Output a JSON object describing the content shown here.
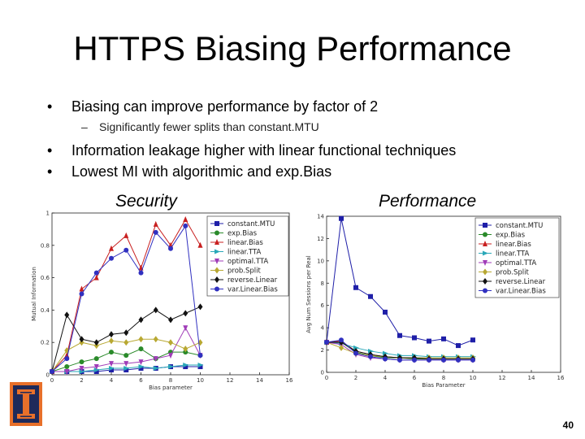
{
  "slide": {
    "title": "HTTPS Biasing Performance",
    "bullets": [
      "Biasing can improve performance by factor of 2",
      "Significantly fewer splits than constant.MTU",
      "Information leakage higher with linear functional techniques",
      "Lowest MI with algorithmic and exp.Bias"
    ],
    "label_security": "Security",
    "label_performance": "Performance",
    "page_number": "40"
  },
  "chart_data": [
    {
      "type": "line",
      "xlabel": "Bias parameter",
      "ylabel": "Mutual Information",
      "xlim": [
        0,
        16
      ],
      "ylim": [
        0,
        1.0
      ],
      "xticks": [
        0,
        2,
        4,
        6,
        8,
        10,
        12,
        14,
        16
      ],
      "yticks": [
        0,
        0.2,
        0.4,
        0.6,
        0.8,
        1.0
      ],
      "grid": false,
      "legend": "right, overlapping plot",
      "series": [
        {
          "name": "constant.MTU",
          "color": "#1f1fa8",
          "marker": "square",
          "x": [
            0,
            1,
            2,
            3,
            4,
            5,
            6,
            7,
            8,
            9,
            10
          ],
          "y": [
            0.02,
            0.02,
            0.02,
            0.02,
            0.03,
            0.03,
            0.04,
            0.04,
            0.05,
            0.05,
            0.05
          ]
        },
        {
          "name": "exp.Bias",
          "color": "#2a8a2a",
          "marker": "circle",
          "x": [
            0,
            1,
            2,
            3,
            4,
            5,
            6,
            7,
            8,
            9,
            10
          ],
          "y": [
            0.02,
            0.05,
            0.08,
            0.1,
            0.14,
            0.12,
            0.16,
            0.1,
            0.14,
            0.14,
            0.12
          ]
        },
        {
          "name": "linear.Bias",
          "color": "#c82020",
          "marker": "triangle",
          "x": [
            0,
            1,
            2,
            3,
            4,
            5,
            6,
            7,
            8,
            9,
            10
          ],
          "y": [
            0.02,
            0.12,
            0.53,
            0.6,
            0.78,
            0.86,
            0.66,
            0.93,
            0.8,
            0.96,
            0.8
          ]
        },
        {
          "name": "linear.TTA",
          "color": "#2aa8b8",
          "marker": "triangle-right",
          "x": [
            0,
            1,
            2,
            3,
            4,
            5,
            6,
            7,
            8,
            9,
            10
          ],
          "y": [
            0.02,
            0.02,
            0.02,
            0.03,
            0.04,
            0.04,
            0.05,
            0.04,
            0.05,
            0.06,
            0.06
          ]
        },
        {
          "name": "optimal.TTA",
          "color": "#a03cb8",
          "marker": "triangle-down",
          "x": [
            0,
            1,
            2,
            3,
            4,
            5,
            6,
            7,
            8,
            9,
            10
          ],
          "y": [
            0.02,
            0.02,
            0.04,
            0.05,
            0.07,
            0.07,
            0.08,
            0.1,
            0.12,
            0.29,
            0.12
          ]
        },
        {
          "name": "prob.Split",
          "color": "#b8a832",
          "marker": "diamond",
          "x": [
            0,
            1,
            2,
            3,
            4,
            5,
            6,
            7,
            8,
            9,
            10
          ],
          "y": [
            0.02,
            0.15,
            0.2,
            0.18,
            0.21,
            0.2,
            0.22,
            0.22,
            0.2,
            0.16,
            0.2
          ]
        },
        {
          "name": "reverse.Linear",
          "color": "#111111",
          "marker": "diamond",
          "x": [
            0,
            1,
            2,
            3,
            4,
            5,
            6,
            7,
            8,
            9,
            10
          ],
          "y": [
            0.02,
            0.37,
            0.22,
            0.2,
            0.25,
            0.26,
            0.34,
            0.4,
            0.34,
            0.38,
            0.42
          ]
        },
        {
          "name": "var.Linear.Bias",
          "color": "#3030c0",
          "marker": "circle",
          "x": [
            0,
            1,
            2,
            3,
            4,
            5,
            6,
            7,
            8,
            9,
            10
          ],
          "y": [
            0.02,
            0.1,
            0.5,
            0.63,
            0.72,
            0.77,
            0.63,
            0.88,
            0.78,
            0.92,
            0.12
          ]
        }
      ]
    },
    {
      "type": "line",
      "xlabel": "Bias Parameter",
      "ylabel": "Avg Num Sessions per Real",
      "xlim": [
        0,
        16
      ],
      "ylim": [
        0,
        14
      ],
      "xticks": [
        0,
        2,
        4,
        6,
        8,
        10,
        12,
        14,
        16
      ],
      "yticks": [
        0,
        2,
        4,
        6,
        8,
        10,
        12,
        14
      ],
      "grid": false,
      "legend": "top-right",
      "series": [
        {
          "name": "constant.MTU",
          "color": "#1f1fa8",
          "marker": "square",
          "x": [
            0,
            1,
            2,
            3,
            4,
            5,
            6,
            7,
            8,
            9,
            10
          ],
          "y": [
            2.7,
            13.8,
            7.6,
            6.8,
            5.4,
            3.3,
            3.1,
            2.8,
            3.0,
            2.4,
            2.9
          ]
        },
        {
          "name": "exp.Bias",
          "color": "#2a8a2a",
          "marker": "circle",
          "x": [
            0,
            1,
            2,
            3,
            4,
            5,
            6,
            7,
            8,
            9,
            10
          ],
          "y": [
            2.7,
            2.7,
            1.8,
            1.5,
            1.3,
            1.3,
            1.2,
            1.2,
            1.2,
            1.2,
            1.2
          ]
        },
        {
          "name": "linear.Bias",
          "color": "#c82020",
          "marker": "triangle",
          "x": [
            0,
            1,
            2,
            3,
            4,
            5,
            6,
            7,
            8,
            9,
            10
          ],
          "y": [
            2.7,
            2.8,
            1.9,
            1.6,
            1.4,
            1.3,
            1.3,
            1.2,
            1.2,
            1.2,
            1.2
          ]
        },
        {
          "name": "linear.TTA",
          "color": "#2aa8b8",
          "marker": "triangle-right",
          "x": [
            0,
            1,
            2,
            3,
            4,
            5,
            6,
            7,
            8,
            9,
            10
          ],
          "y": [
            2.7,
            2.6,
            2.2,
            1.9,
            1.7,
            1.5,
            1.5,
            1.4,
            1.4,
            1.4,
            1.4
          ]
        },
        {
          "name": "optimal.TTA",
          "color": "#a03cb8",
          "marker": "triangle-down",
          "x": [
            0,
            1,
            2,
            3,
            4,
            5,
            6,
            7,
            8,
            9,
            10
          ],
          "y": [
            2.7,
            2.5,
            1.6,
            1.3,
            1.2,
            1.1,
            1.1,
            1.1,
            1.1,
            1.1,
            1.1
          ]
        },
        {
          "name": "prob.Split",
          "color": "#b8a832",
          "marker": "diamond",
          "x": [
            0,
            1,
            2,
            3,
            4,
            5,
            6,
            7,
            8,
            9,
            10
          ],
          "y": [
            2.7,
            2.2,
            1.7,
            1.5,
            1.4,
            1.3,
            1.3,
            1.3,
            1.3,
            1.3,
            1.3
          ]
        },
        {
          "name": "reverse.Linear",
          "color": "#111111",
          "marker": "diamond",
          "x": [
            0,
            1,
            2,
            3,
            4,
            5,
            6,
            7,
            8,
            9,
            10
          ],
          "y": [
            2.7,
            2.7,
            1.9,
            1.6,
            1.4,
            1.3,
            1.3,
            1.2,
            1.2,
            1.2,
            1.2
          ]
        },
        {
          "name": "var.Linear.Bias",
          "color": "#3030c0",
          "marker": "circle",
          "x": [
            0,
            1,
            2,
            3,
            4,
            5,
            6,
            7,
            8,
            9,
            10
          ],
          "y": [
            2.7,
            2.9,
            1.7,
            1.4,
            1.2,
            1.1,
            1.1,
            1.1,
            1.1,
            1.1,
            1.1
          ]
        }
      ]
    }
  ]
}
